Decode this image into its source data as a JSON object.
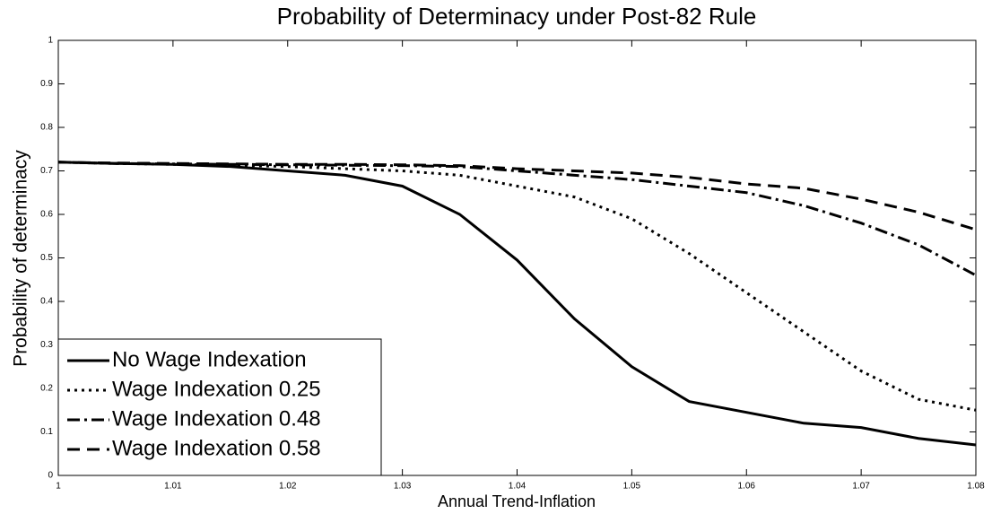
{
  "chart_data": {
    "type": "line",
    "title": "Probability of Determinacy under Post-82 Rule",
    "x_label": "Annual Trend-Inflation",
    "y_label": "Probability of determinacy",
    "x": [
      1,
      1.005,
      1.01,
      1.015,
      1.02,
      1.025,
      1.03,
      1.035,
      1.04,
      1.045,
      1.05,
      1.055,
      1.06,
      1.065,
      1.07,
      1.075,
      1.08
    ],
    "series": [
      {
        "name": "No Wage Indexation",
        "color": "#000000",
        "dash": "solid",
        "values": [
          0.72,
          0.717,
          0.715,
          0.71,
          0.7,
          0.69,
          0.665,
          0.6,
          0.495,
          0.36,
          0.25,
          0.17,
          0.145,
          0.12,
          0.11,
          0.085,
          0.07
        ]
      },
      {
        "name": "Wage Indexation 0.25",
        "color": "#000000",
        "dash": "dotted",
        "values": [
          0.72,
          0.717,
          0.715,
          0.713,
          0.71,
          0.705,
          0.7,
          0.69,
          0.665,
          0.64,
          0.59,
          0.51,
          0.42,
          0.33,
          0.24,
          0.175,
          0.15
        ]
      },
      {
        "name": "Wage Indexation 0.48",
        "color": "#000000",
        "dash": "dashdot",
        "values": [
          0.72,
          0.717,
          0.716,
          0.715,
          0.714,
          0.713,
          0.712,
          0.71,
          0.7,
          0.69,
          0.68,
          0.665,
          0.65,
          0.62,
          0.58,
          0.53,
          0.46
        ]
      },
      {
        "name": "Wage Indexation 0.58",
        "color": "#000000",
        "dash": "dashed",
        "values": [
          0.72,
          0.718,
          0.717,
          0.716,
          0.715,
          0.715,
          0.714,
          0.712,
          0.705,
          0.7,
          0.695,
          0.685,
          0.67,
          0.66,
          0.635,
          0.605,
          0.565
        ]
      }
    ],
    "xlim": [
      1,
      1.08
    ],
    "xticks": [
      1,
      1.01,
      1.02,
      1.03,
      1.04,
      1.05,
      1.06,
      1.07,
      1.08
    ],
    "ylim": [
      0,
      1
    ],
    "yticks": [
      0,
      0.1,
      0.2,
      0.3,
      0.4,
      0.5,
      0.6,
      0.7,
      0.8,
      0.9,
      1
    ],
    "grid": false,
    "legend": "lower left"
  }
}
